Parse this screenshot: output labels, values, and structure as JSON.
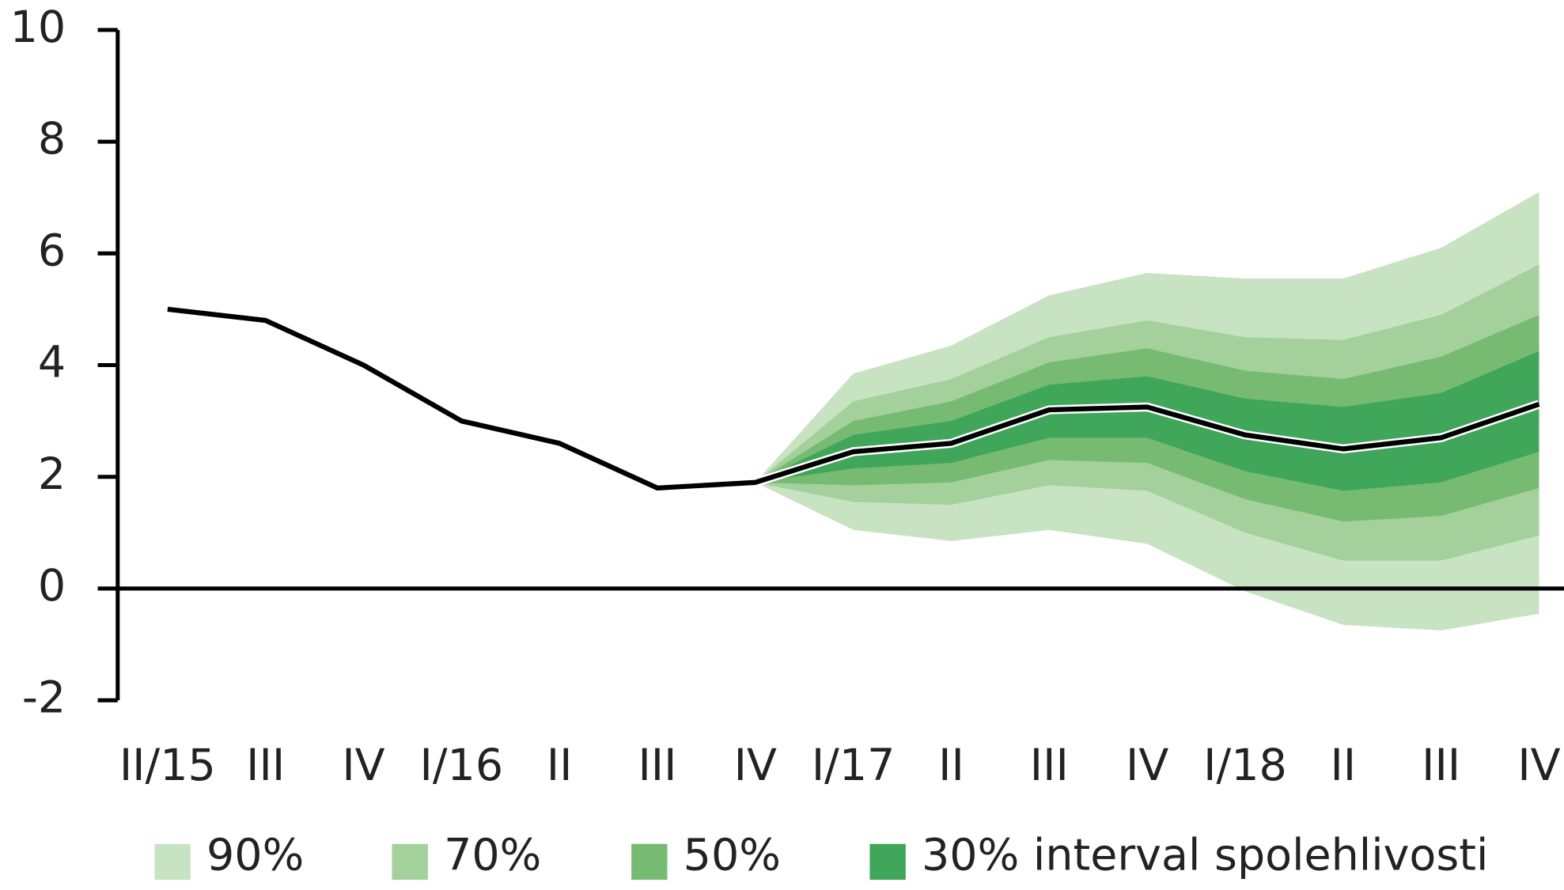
{
  "chart_data": {
    "type": "fan",
    "categories": [
      "II/15",
      "III",
      "IV",
      "I/16",
      "II",
      "III",
      "IV",
      "I/17",
      "II",
      "III",
      "IV",
      "I/18",
      "II",
      "III",
      "IV"
    ],
    "ylim": [
      -2,
      10
    ],
    "yticks": [
      -2,
      0,
      2,
      4,
      6,
      8,
      10
    ],
    "line": {
      "color": "#000000",
      "values": [
        5.0,
        4.8,
        4.0,
        3.0,
        2.6,
        1.8,
        1.9,
        2.45,
        2.6,
        3.2,
        3.25,
        2.75,
        2.5,
        2.7,
        3.3
      ]
    },
    "bands": [
      {
        "name": "90%",
        "color": "#c8e3c2",
        "upper": [
          null,
          null,
          null,
          null,
          null,
          null,
          1.9,
          3.85,
          4.35,
          5.25,
          5.65,
          5.55,
          5.55,
          6.1,
          7.1
        ],
        "lower": [
          null,
          null,
          null,
          null,
          null,
          null,
          1.9,
          1.05,
          0.85,
          1.05,
          0.8,
          -0.05,
          -0.65,
          -0.75,
          -0.45
        ]
      },
      {
        "name": "70%",
        "color": "#a3d09b",
        "upper": [
          null,
          null,
          null,
          null,
          null,
          null,
          1.9,
          3.35,
          3.75,
          4.5,
          4.8,
          4.5,
          4.45,
          4.9,
          5.8
        ],
        "lower": [
          null,
          null,
          null,
          null,
          null,
          null,
          1.9,
          1.55,
          1.5,
          1.85,
          1.75,
          1.0,
          0.5,
          0.5,
          0.95
        ]
      },
      {
        "name": "50%",
        "color": "#77bb72",
        "upper": [
          null,
          null,
          null,
          null,
          null,
          null,
          1.9,
          3.0,
          3.35,
          4.05,
          4.3,
          3.9,
          3.75,
          4.15,
          4.9
        ],
        "lower": [
          null,
          null,
          null,
          null,
          null,
          null,
          1.9,
          1.85,
          1.9,
          2.3,
          2.25,
          1.6,
          1.2,
          1.3,
          1.8
        ]
      },
      {
        "name": "30% interval spolehlivosti",
        "color": "#3fa65a",
        "upper": [
          null,
          null,
          null,
          null,
          null,
          null,
          1.9,
          2.75,
          3.0,
          3.65,
          3.8,
          3.4,
          3.25,
          3.5,
          4.25
        ],
        "lower": [
          null,
          null,
          null,
          null,
          null,
          null,
          1.9,
          2.15,
          2.25,
          2.7,
          2.7,
          2.1,
          1.75,
          1.9,
          2.45
        ]
      }
    ]
  }
}
